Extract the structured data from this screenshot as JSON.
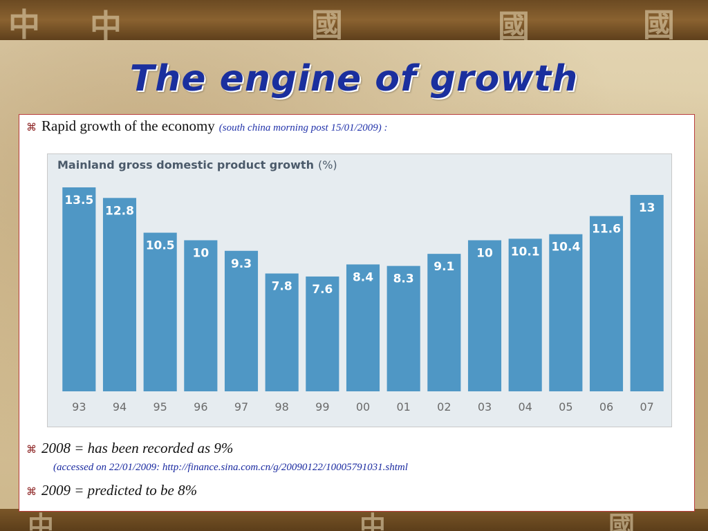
{
  "slide": {
    "title": "The engine of growth",
    "bullet1_text": "Rapid growth of the economy",
    "bullet1_source": "(south china morning post 15/01/2009) :",
    "bullet2_text": "2008 = has been recorded as 9%",
    "accessed_text": "(accessed on 22/01/2009: http://finance.sina.com.cn/g/20090122/10005791031.shtml",
    "bullet3_text": "2009 = predicted to be 8%",
    "bullet_icon": "command-key-icon",
    "bullet_glyph": "⌘",
    "banner_glyphs": [
      "中",
      "中",
      "國",
      "國",
      "國",
      "中",
      "中",
      "國"
    ]
  },
  "colors": {
    "title": "#1a2f9e",
    "bar": "#4f97c5",
    "bar_label": "#ffffff",
    "panel_border": "#b93c3c",
    "chart_background": "#e6ecf0"
  },
  "chart_data": {
    "type": "bar",
    "title": "Mainland gross domestic product growth",
    "unit": "(%)",
    "categories": [
      "93",
      "94",
      "95",
      "96",
      "97",
      "98",
      "99",
      "00",
      "01",
      "02",
      "03",
      "04",
      "05",
      "06",
      "07"
    ],
    "values": [
      13.5,
      12.8,
      10.5,
      10,
      9.3,
      7.8,
      7.6,
      8.4,
      8.3,
      9.1,
      10,
      10.1,
      10.4,
      11.6,
      13
    ],
    "ylim": [
      0,
      13.5
    ],
    "grid": false,
    "legend": "none",
    "data_labels": true
  }
}
